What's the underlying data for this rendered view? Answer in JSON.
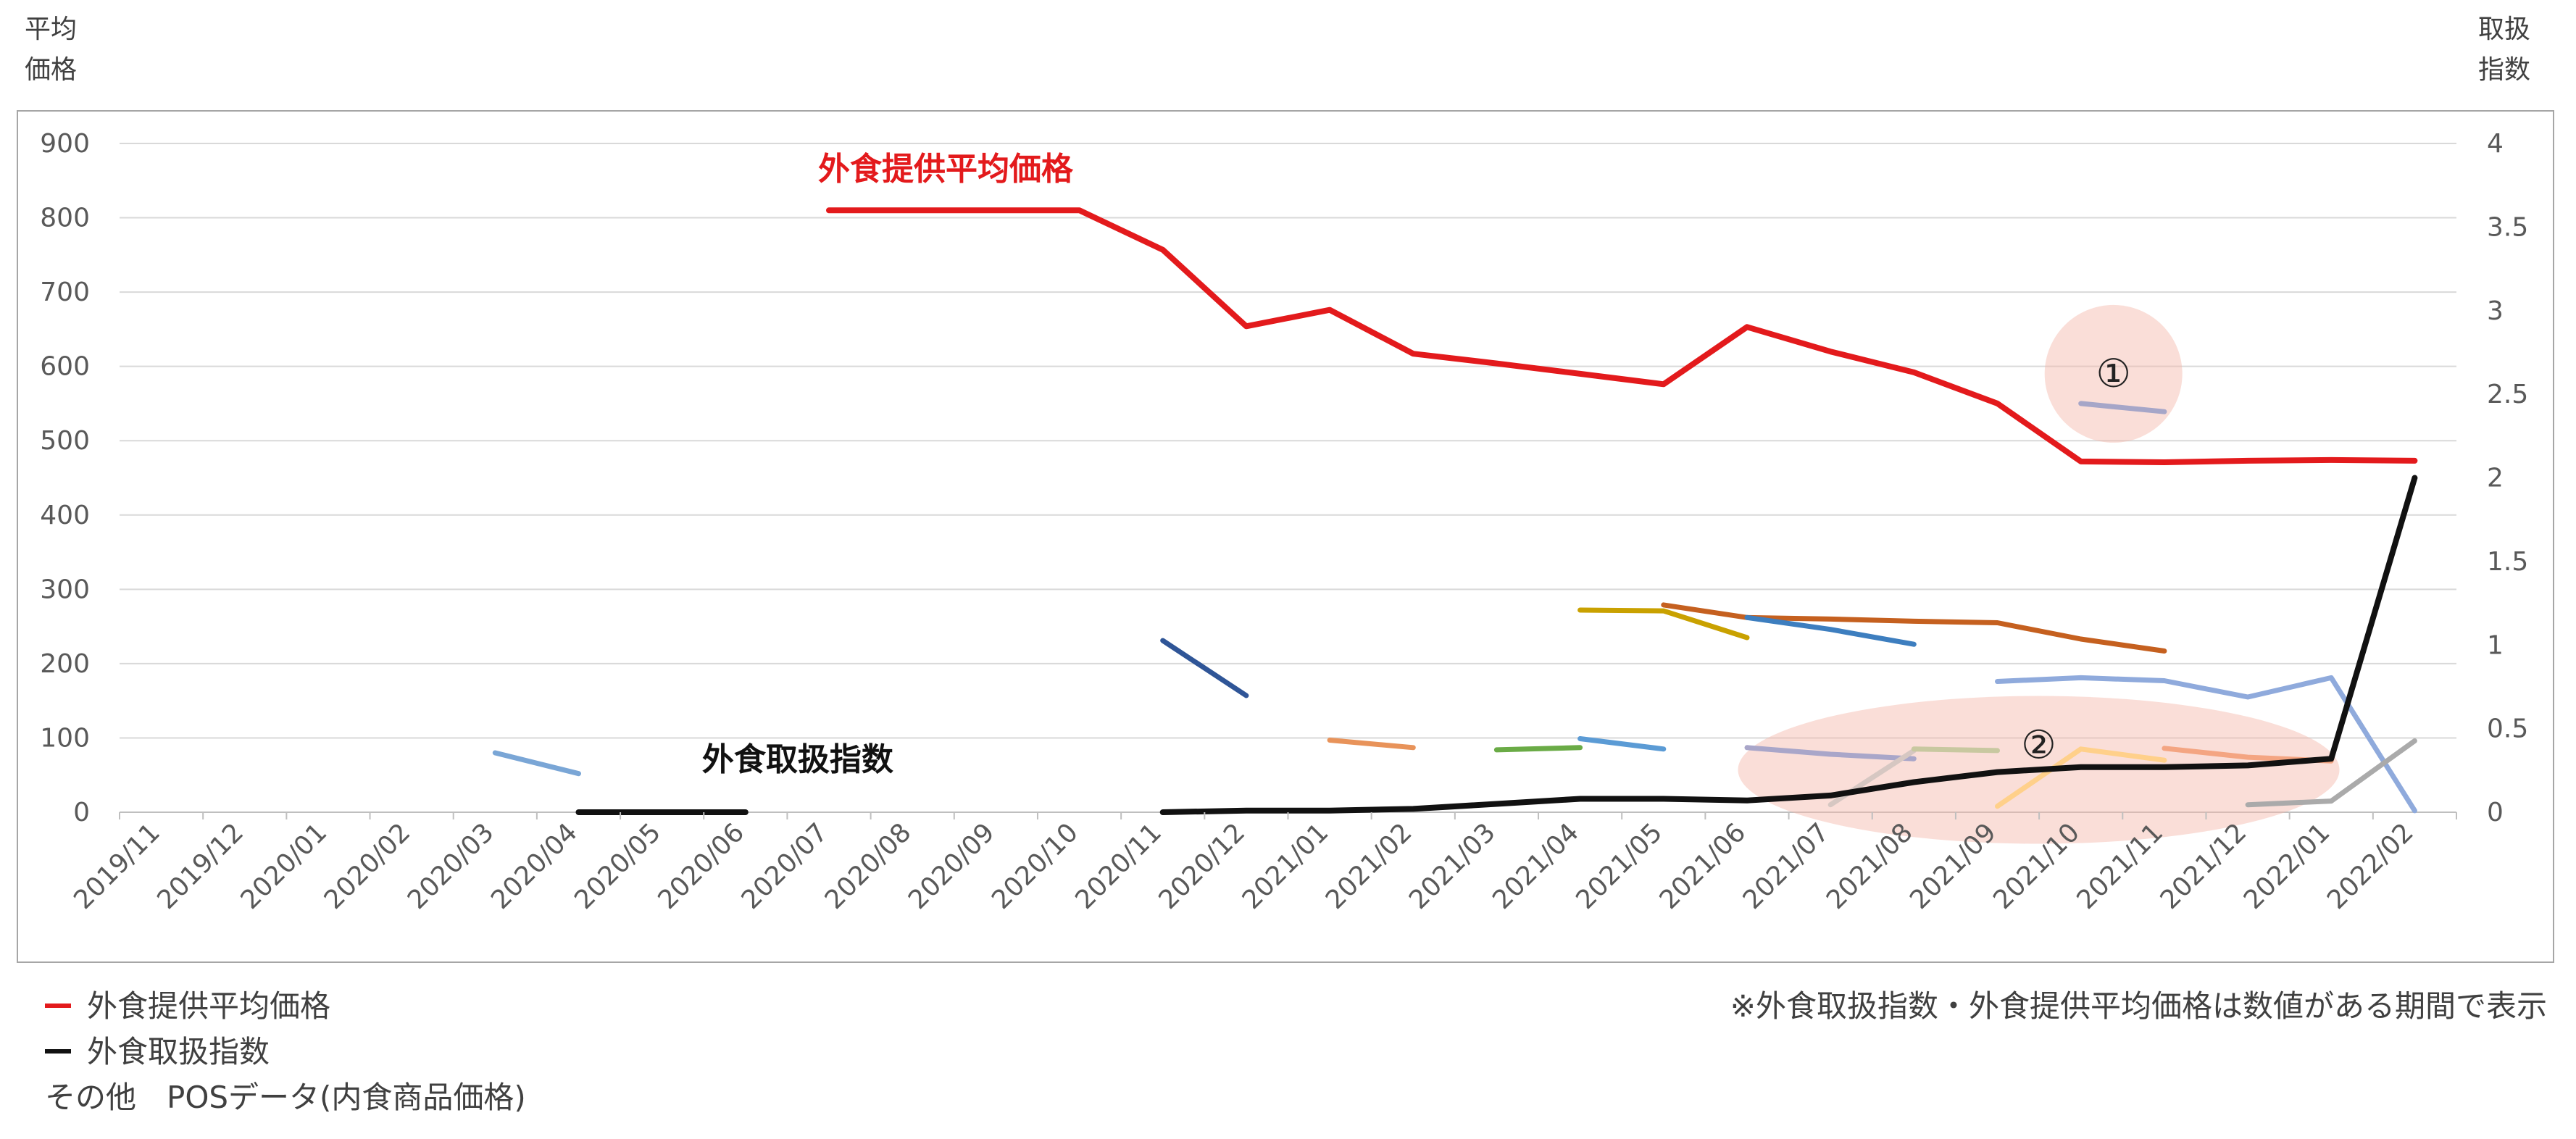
{
  "chart_data": {
    "type": "line",
    "left_axis_title": [
      "平均",
      "価格"
    ],
    "right_axis_title": [
      "取扱",
      "指数"
    ],
    "ylim_left": [
      0,
      900
    ],
    "yticks_left": [
      "900",
      "800",
      "700",
      "600",
      "500",
      "400",
      "300",
      "200",
      "100",
      "0"
    ],
    "ylim_right": [
      0,
      4
    ],
    "yticks_right": [
      "4",
      "3.5",
      "3",
      "2.5",
      "2",
      "1.5",
      "1",
      "0.5",
      "0"
    ],
    "categories": [
      "2019/11",
      "2019/12",
      "2020/01",
      "2020/02",
      "2020/03",
      "2020/04",
      "2020/05",
      "2020/06",
      "2020/07",
      "2020/08",
      "2020/09",
      "2020/10",
      "2020/11",
      "2020/12",
      "2021/01",
      "2021/02",
      "2021/03",
      "2021/04",
      "2021/05",
      "2021/06",
      "2021/07",
      "2021/08",
      "2021/09",
      "2021/10",
      "2021/11",
      "2021/12",
      "2022/01",
      "2022/02"
    ],
    "grid": true,
    "series": [
      {
        "name": "外食提供平均価格",
        "axis": "left",
        "color": "#e31a1c",
        "width": 8,
        "label": "外食提供平均価格",
        "values": [
          null,
          null,
          null,
          null,
          null,
          null,
          null,
          null,
          810,
          810,
          810,
          810,
          757,
          654,
          676,
          617,
          604,
          590,
          576,
          653,
          620,
          592,
          550,
          472,
          471,
          473,
          474,
          473
        ]
      },
      {
        "name": "外食取扱指数",
        "axis": "right",
        "color": "#111111",
        "width": 8,
        "label": "外食取扱指数",
        "values": [
          null,
          null,
          null,
          null,
          null,
          0,
          0,
          0,
          null,
          null,
          null,
          null,
          0,
          0.01,
          0.01,
          0.02,
          0.05,
          0.08,
          0.08,
          0.07,
          0.1,
          0.18,
          0.24,
          0.27,
          0.27,
          0.28,
          0.32,
          2
        ]
      },
      {
        "axis": "left",
        "color": "#7aa6d6",
        "values": [
          null,
          null,
          null,
          null,
          80,
          52,
          null,
          null,
          null,
          null,
          null,
          null,
          null,
          null,
          null,
          null,
          null,
          null,
          null,
          null,
          null,
          null,
          null,
          null,
          null,
          null,
          null,
          null
        ]
      },
      {
        "axis": "left",
        "color": "#2f5597",
        "values": [
          null,
          null,
          null,
          null,
          null,
          null,
          null,
          null,
          null,
          null,
          null,
          null,
          231,
          157,
          null,
          null,
          null,
          null,
          null,
          null,
          null,
          null,
          null,
          null,
          null,
          null,
          null,
          null
        ]
      },
      {
        "axis": "left",
        "color": "#e8935a",
        "values": [
          null,
          null,
          null,
          null,
          null,
          null,
          null,
          null,
          null,
          null,
          null,
          null,
          null,
          null,
          97,
          87,
          null,
          null,
          null,
          null,
          null,
          null,
          null,
          null,
          null,
          null,
          null,
          null
        ]
      },
      {
        "axis": "left",
        "color": "#6aab46",
        "values": [
          null,
          null,
          null,
          null,
          null,
          null,
          null,
          null,
          null,
          null,
          null,
          null,
          null,
          null,
          null,
          null,
          84,
          87,
          null,
          null,
          null,
          null,
          null,
          null,
          null,
          null,
          null,
          null
        ]
      },
      {
        "axis": "left",
        "color": "#5b9bd5",
        "values": [
          null,
          null,
          null,
          null,
          null,
          null,
          null,
          null,
          null,
          null,
          null,
          null,
          null,
          null,
          null,
          null,
          null,
          99,
          85,
          null,
          null,
          null,
          null,
          null,
          null,
          null,
          null,
          null
        ]
      },
      {
        "axis": "left",
        "color": "#c9a100",
        "values": [
          null,
          null,
          null,
          null,
          null,
          null,
          null,
          null,
          null,
          null,
          null,
          null,
          null,
          null,
          null,
          null,
          null,
          272,
          271,
          235,
          null,
          null,
          null,
          null,
          null,
          null,
          null,
          null
        ]
      },
      {
        "axis": "left",
        "color": "#c5601f",
        "values": [
          null,
          null,
          null,
          null,
          null,
          null,
          null,
          null,
          null,
          null,
          null,
          null,
          null,
          null,
          null,
          null,
          null,
          null,
          279,
          262,
          260,
          257,
          255,
          233,
          217,
          null,
          null,
          null
        ]
      },
      {
        "axis": "left",
        "color": "#3d7ebf",
        "values": [
          null,
          null,
          null,
          null,
          null,
          null,
          null,
          null,
          null,
          null,
          null,
          null,
          null,
          null,
          null,
          null,
          null,
          null,
          null,
          262,
          246,
          226,
          null,
          null,
          null,
          null,
          null,
          null
        ]
      },
      {
        "axis": "left",
        "color": "#a9a6c9",
        "values": [
          null,
          null,
          null,
          null,
          null,
          null,
          null,
          null,
          null,
          null,
          null,
          null,
          null,
          null,
          null,
          null,
          null,
          null,
          null,
          87,
          78,
          72,
          null,
          null,
          null,
          null,
          null,
          null
        ]
      },
      {
        "axis": "left",
        "color": "#d6c7c2",
        "values": [
          null,
          null,
          null,
          null,
          null,
          null,
          null,
          null,
          null,
          null,
          null,
          null,
          null,
          null,
          null,
          null,
          null,
          null,
          null,
          null,
          10,
          83,
          null,
          null,
          null,
          null,
          null,
          null
        ]
      },
      {
        "axis": "left",
        "color": "#c8c8a0",
        "values": [
          null,
          null,
          null,
          null,
          null,
          null,
          null,
          null,
          null,
          null,
          null,
          null,
          null,
          null,
          null,
          null,
          null,
          null,
          null,
          null,
          null,
          85,
          83,
          null,
          null,
          null,
          null,
          null
        ]
      },
      {
        "axis": "left",
        "color": "#8faadc",
        "values": [
          null,
          null,
          null,
          null,
          null,
          null,
          null,
          null,
          null,
          null,
          null,
          null,
          null,
          null,
          null,
          null,
          null,
          null,
          null,
          null,
          null,
          null,
          176,
          181,
          177,
          155,
          181,
          2
        ]
      },
      {
        "axis": "left",
        "color": "#ffd08a",
        "values": [
          null,
          null,
          null,
          null,
          null,
          null,
          null,
          null,
          null,
          null,
          null,
          null,
          null,
          null,
          null,
          null,
          null,
          null,
          null,
          null,
          null,
          null,
          8,
          85,
          70,
          null,
          null,
          null
        ]
      },
      {
        "axis": "left",
        "color": "#a6a6c8",
        "values": [
          null,
          null,
          null,
          null,
          null,
          null,
          null,
          null,
          null,
          null,
          null,
          null,
          null,
          null,
          null,
          null,
          null,
          null,
          null,
          null,
          null,
          null,
          null,
          550,
          539,
          null,
          null,
          null
        ]
      },
      {
        "axis": "left",
        "color": "#f4a582",
        "values": [
          null,
          null,
          null,
          null,
          null,
          null,
          null,
          null,
          null,
          null,
          null,
          null,
          null,
          null,
          null,
          null,
          null,
          null,
          null,
          null,
          null,
          null,
          null,
          null,
          86,
          74,
          69,
          null
        ]
      },
      {
        "axis": "left",
        "color": "#aaaaaa",
        "values": [
          null,
          null,
          null,
          null,
          null,
          null,
          null,
          null,
          null,
          null,
          null,
          null,
          null,
          null,
          null,
          null,
          null,
          null,
          null,
          null,
          null,
          null,
          null,
          null,
          null,
          10,
          15,
          96
        ]
      }
    ],
    "annotations": [
      {
        "text": "①",
        "category": "2021/10",
        "shaded": true
      },
      {
        "text": "②",
        "category": "2021/09",
        "shaded": true
      }
    ]
  },
  "legend": {
    "items": [
      {
        "label": "外食提供平均価格",
        "color": "#e31a1c"
      },
      {
        "label": "外食取扱指数",
        "color": "#111111"
      }
    ],
    "other": "その他　POSデータ(内食商品価格)",
    "note": "※外食取扱指数・外食提供平均価格は数値がある期間で表示"
  }
}
